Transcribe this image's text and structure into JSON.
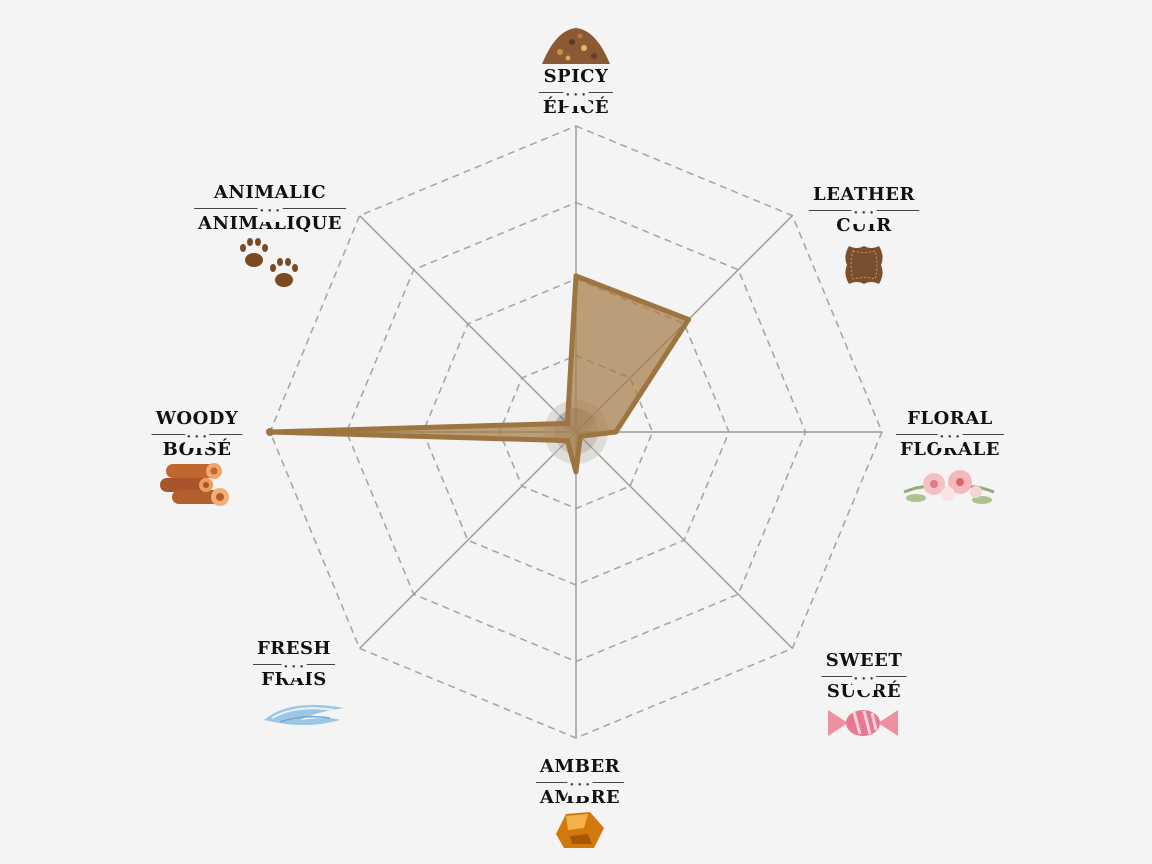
{
  "chart_data": {
    "type": "radar",
    "axes": [
      {
        "key": "spicy",
        "en": "SPICY",
        "fr": "ÉPICÉ",
        "icon": "spice-pile-icon"
      },
      {
        "key": "leather",
        "en": "LEATHER",
        "fr": "CUIR",
        "icon": "leather-hide-icon"
      },
      {
        "key": "floral",
        "en": "FLORAL",
        "fr": "FLORALE",
        "icon": "flower-bouquet-icon"
      },
      {
        "key": "sweet",
        "en": "SWEET",
        "fr": "SUCRÉ",
        "icon": "candy-icon"
      },
      {
        "key": "amber",
        "en": "AMBER",
        "fr": "AMBRE",
        "icon": "amber-stone-icon"
      },
      {
        "key": "fresh",
        "en": "FRESH",
        "fr": "FRAIS",
        "icon": "wind-splash-icon"
      },
      {
        "key": "woody",
        "en": "WOODY",
        "fr": "BOISÉ",
        "icon": "wood-logs-icon"
      },
      {
        "key": "animalic",
        "en": "ANIMALIC",
        "fr": "ANIMALIQUE",
        "icon": "paw-prints-icon"
      }
    ],
    "values": [
      0.51,
      0.52,
      0.13,
      0.0,
      0.13,
      0.04,
      1.0,
      0.04
    ],
    "range": [
      0,
      1
    ],
    "rings": 4,
    "grid": true,
    "fill_color": "#a57c46",
    "stroke_color": "#9c7540",
    "grid_color": "#a7a7a7",
    "axis_color": "#9a9a9a",
    "background": "#f4f4f4"
  }
}
